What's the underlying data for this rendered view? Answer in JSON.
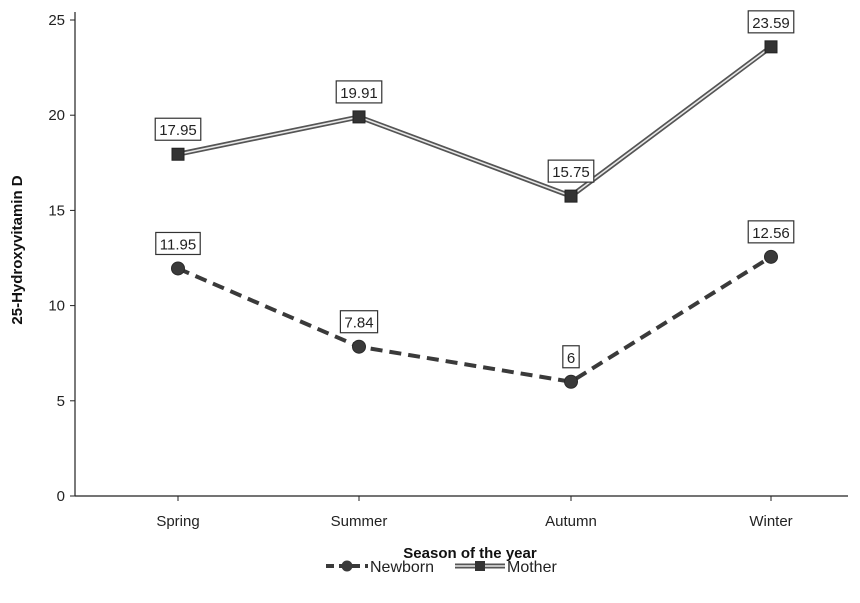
{
  "chart_data": {
    "type": "line",
    "title": "",
    "xlabel": "Season of the year",
    "ylabel": "25-Hydroxyvitamin D",
    "categories": [
      "Spring",
      "Summer",
      "Autumn",
      "Winter"
    ],
    "ylim": [
      0,
      25
    ],
    "yticks": [
      0,
      5,
      10,
      15,
      20,
      25
    ],
    "grid": false,
    "legend_position": "bottom",
    "series": [
      {
        "name": "Newborn",
        "values": [
          11.95,
          7.84,
          6,
          12.56
        ],
        "labels": [
          "11.95",
          "7.84",
          "6",
          "12.56"
        ],
        "color": "#3a3a3a",
        "marker": "circle",
        "line_style": "dashed"
      },
      {
        "name": "Mother",
        "values": [
          17.95,
          19.91,
          15.75,
          23.59
        ],
        "labels": [
          "17.95",
          "19.91",
          "15.75",
          "23.59"
        ],
        "color": "#555555",
        "marker": "square",
        "line_style": "double"
      }
    ]
  }
}
